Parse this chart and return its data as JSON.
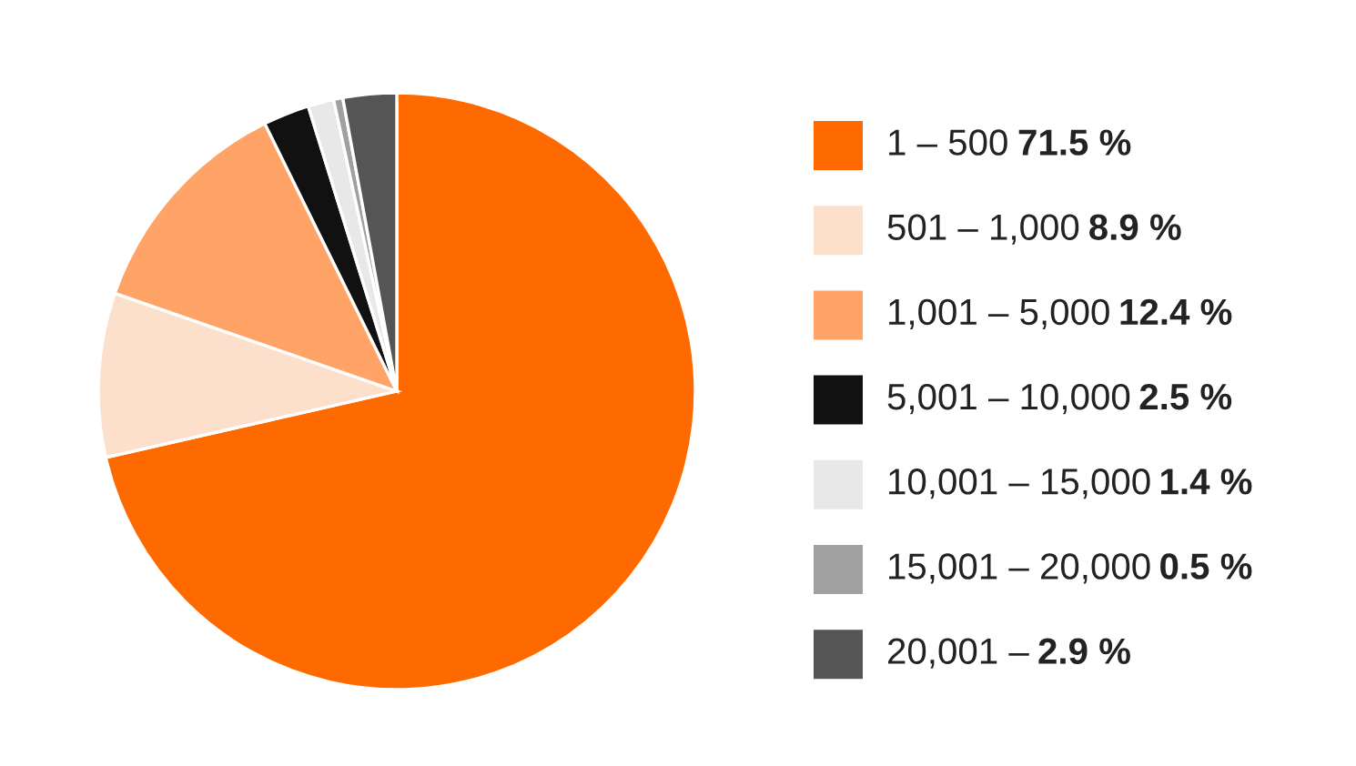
{
  "chart_data": {
    "type": "pie",
    "categories": [
      "1 – 500",
      "501 – 1,000",
      "1,001 – 5,000",
      "5,001 – 10,000",
      "10,001 – 15,000",
      "15,001 – 20,000",
      "20,001 –"
    ],
    "values": [
      71.5,
      8.9,
      12.4,
      2.5,
      1.4,
      0.5,
      2.9
    ],
    "value_labels": [
      "71.5 %",
      "8.9 %",
      "12.4 %",
      "2.5 %",
      "1.4 %",
      "0.5 %",
      "2.9 %"
    ],
    "colors": [
      "#ff6a00",
      "#fde0cc",
      "#ffa466",
      "#111111",
      "#e8e8e8",
      "#a0a0a0",
      "#555555"
    ],
    "legend": "right"
  }
}
